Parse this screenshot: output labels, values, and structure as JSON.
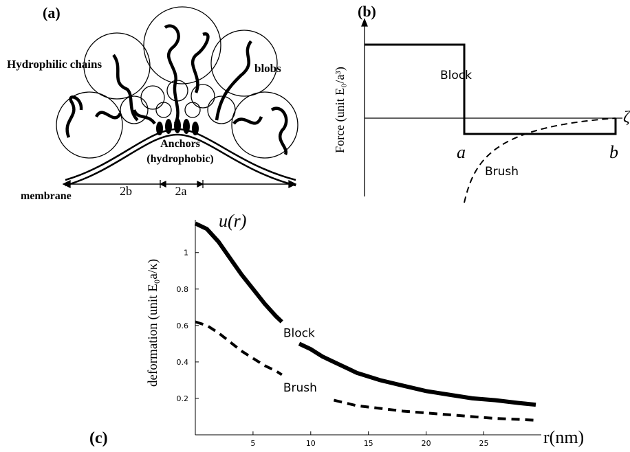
{
  "diagram": {
    "label": "(a)",
    "chains": "Hydrophilic chains",
    "blobs": "blobs",
    "anchors": "Anchors",
    "hydrophobic": "(hydrophobic)",
    "membrane": "membrane",
    "dim_b": "2b",
    "dim_a": "2a"
  },
  "schematic": {
    "label": "(b)",
    "y_label": "Force (unit E₀/a³)",
    "x_symbol": "ζ",
    "mark_a": "a",
    "mark_b": "b",
    "block": "Block",
    "brush": "Brush"
  },
  "chart_data": {
    "type": "line",
    "label": "(c)",
    "annotation": "u(r)",
    "x_label": "r(nm)",
    "y_label": "deformation (unit E₀a/κ)",
    "x": [
      0,
      1,
      2,
      3,
      4,
      5,
      6,
      7,
      7.5,
      8,
      9,
      10,
      11,
      12,
      14,
      16,
      18,
      20,
      22,
      24,
      26,
      28,
      29.5
    ],
    "series": [
      {
        "name": "Block",
        "color": "#000000",
        "dashed": false,
        "values": [
          1.16,
          1.13,
          1.06,
          0.97,
          0.88,
          0.8,
          0.72,
          0.65,
          0.62,
          null,
          0.5,
          0.47,
          0.43,
          0.4,
          0.34,
          0.3,
          0.27,
          0.24,
          0.22,
          0.2,
          0.19,
          0.175,
          0.165
        ]
      },
      {
        "name": "Brush",
        "color": "#000000",
        "dashed": true,
        "values": [
          0.62,
          0.6,
          0.56,
          0.51,
          0.46,
          0.42,
          0.38,
          0.35,
          0.33,
          null,
          null,
          null,
          null,
          0.19,
          0.16,
          0.145,
          0.13,
          0.12,
          0.11,
          0.1,
          0.09,
          0.085,
          0.08
        ]
      }
    ],
    "xlim": [
      0,
      29.5
    ],
    "ylim": [
      0,
      1.18
    ],
    "xticks": [
      5,
      10,
      15,
      20,
      25
    ],
    "yticks": [
      0.2,
      0.4,
      0.6,
      0.8,
      1
    ],
    "grid": false
  }
}
